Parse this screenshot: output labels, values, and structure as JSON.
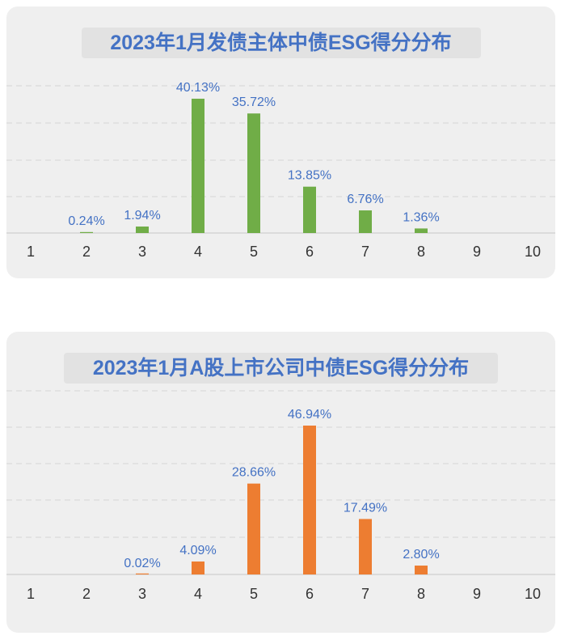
{
  "chart_data": [
    {
      "type": "bar",
      "title": "2023年1月发债主体中债ESG得分分布",
      "categories": [
        "1",
        "2",
        "3",
        "4",
        "5",
        "6",
        "7",
        "8",
        "9",
        "10"
      ],
      "values": [
        0,
        0.24,
        1.94,
        40.13,
        35.72,
        13.85,
        6.76,
        1.36,
        0,
        0
      ],
      "data_labels": [
        "",
        "0.24%",
        "1.94%",
        "40.13%",
        "35.72%",
        "13.85%",
        "6.76%",
        "1.36%",
        "",
        ""
      ],
      "ylim": [
        0,
        45
      ],
      "color": "#70ad47",
      "grid": true,
      "xlabel": "",
      "ylabel": ""
    },
    {
      "type": "bar",
      "title": "2023年1月A股上市公司中债ESG得分分布",
      "categories": [
        "1",
        "2",
        "3",
        "4",
        "5",
        "6",
        "7",
        "8",
        "9",
        "10"
      ],
      "values": [
        0,
        0,
        0.02,
        4.09,
        28.66,
        46.94,
        17.49,
        2.8,
        0,
        0
      ],
      "data_labels": [
        "",
        "",
        "0.02%",
        "4.09%",
        "28.66%",
        "46.94%",
        "17.49%",
        "2.80%",
        "",
        ""
      ],
      "ylim": [
        0,
        50
      ],
      "color": "#ed7d31",
      "grid": true,
      "xlabel": "",
      "ylabel": ""
    }
  ]
}
